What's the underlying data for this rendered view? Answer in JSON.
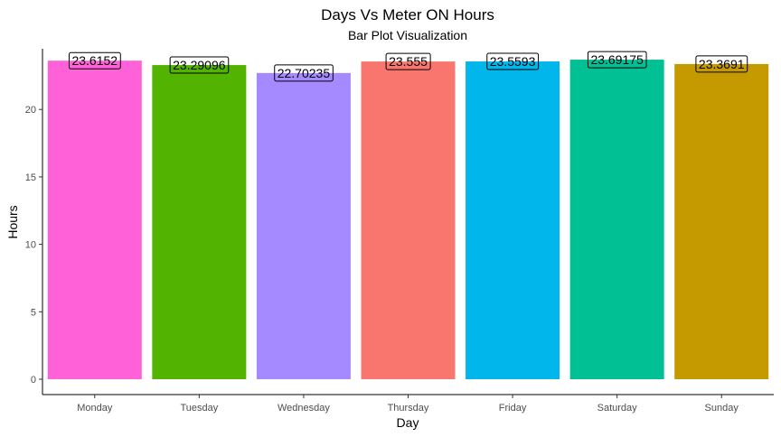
{
  "chart_data": {
    "type": "bar",
    "title": "Days Vs Meter ON Hours",
    "subtitle": "Bar Plot Visualization",
    "xlabel": "Day",
    "ylabel": "Hours",
    "ylim": [
      0,
      24.5
    ],
    "yticks": [
      0,
      5,
      10,
      15,
      20
    ],
    "yticks_labels": [
      "0",
      "5",
      "10",
      "15",
      "20"
    ],
    "grid": false,
    "categories": [
      "Monday",
      "Tuesday",
      "Wednesday",
      "Thursday",
      "Friday",
      "Saturday",
      "Sunday"
    ],
    "values": [
      23.6152,
      23.29096,
      22.70235,
      23.555,
      23.5593,
      23.69175,
      23.3691
    ],
    "data_labels": [
      "23.6152",
      "23.29096",
      "22.70235",
      "23.555",
      "23.5593",
      "23.69175",
      "23.3691"
    ],
    "colors": [
      "#FF61D8",
      "#53B400",
      "#A58AFF",
      "#F8766D",
      "#00B6EB",
      "#00C094",
      "#C49A00"
    ]
  }
}
